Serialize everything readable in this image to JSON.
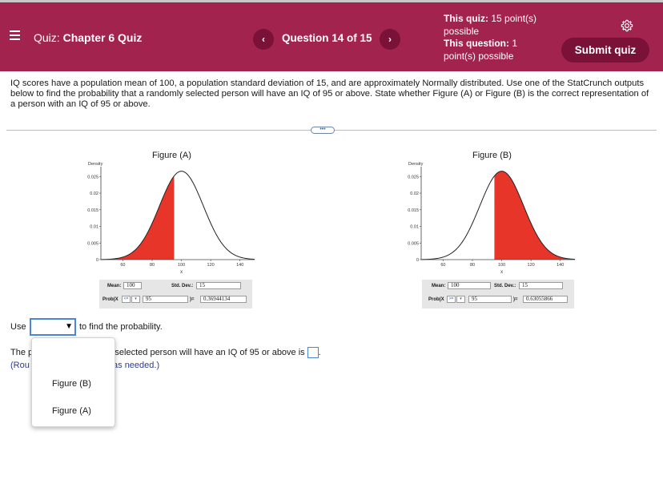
{
  "header": {
    "quiz_label": "Quiz:",
    "quiz_name": "Chapter 6 Quiz",
    "prev_symbol": "‹",
    "next_symbol": "›",
    "question_position": "Question 14 of 15",
    "this_quiz_label": "This quiz:",
    "this_quiz_points": "15 point(s)",
    "this_quiz_suffix": "possible",
    "this_question_label": "This question:",
    "this_question_points": "1",
    "this_question_suffix": "point(s) possible",
    "submit_label": "Submit quiz"
  },
  "question": {
    "text": "IQ scores have a population mean of 100, a population standard deviation of 15, and are approximately Normally distributed. Use one of the StatCrunch outputs below to find the probability that a randomly selected person will have an IQ of 95 or above. State whether Figure (A) or Figure (B) is the correct representation of a person with an IQ of 95 or above."
  },
  "divider_handle": "•••",
  "figures": [
    {
      "title": "Figure (A)",
      "density_label": "Density",
      "ytick_labels": [
        "0.025",
        "0.02",
        "0.015",
        "0.01",
        "0.005",
        "0"
      ],
      "xtick_labels": [
        "60",
        "80",
        "100",
        "120",
        "140"
      ],
      "x_axis_label": "x",
      "mean_label": "Mean:",
      "mean_value": "100",
      "sd_label": "Std. Dev.:",
      "sd_value": "15",
      "prob_label": "Prob(X",
      "direction": "<=",
      "cut_value": "95",
      "result_label": ")=",
      "result_value": "0.36944134"
    },
    {
      "title": "Figure (B)",
      "density_label": "Density",
      "ytick_labels": [
        "0.025",
        "0.02",
        "0.015",
        "0.01",
        "0.005",
        "0"
      ],
      "xtick_labels": [
        "60",
        "80",
        "100",
        "120",
        "140"
      ],
      "x_axis_label": "x",
      "mean_label": "Mean:",
      "mean_value": "100",
      "sd_label": "Std. Dev.:",
      "sd_value": "15",
      "prob_label": "Prob(X",
      "direction": ">=",
      "cut_value": "95",
      "result_label": ")=",
      "result_value": "0.63055866"
    }
  ],
  "chart_data": [
    {
      "type": "area",
      "title": "Figure (A)",
      "ylabel": "Density",
      "xlabel": "x",
      "distribution": "normal",
      "mean": 100,
      "sd": 15,
      "shaded_region": "x <= 95",
      "xlim": [
        45,
        150
      ],
      "ylim": [
        0,
        0.027
      ],
      "xticks": [
        60,
        80,
        100,
        120,
        140
      ],
      "yticks": [
        0,
        0.005,
        0.01,
        0.015,
        0.02,
        0.025
      ],
      "shade_color": "#e8352a"
    },
    {
      "type": "area",
      "title": "Figure (B)",
      "ylabel": "Density",
      "xlabel": "x",
      "distribution": "normal",
      "mean": 100,
      "sd": 15,
      "shaded_region": "x >= 95",
      "xlim": [
        45,
        150
      ],
      "ylim": [
        0,
        0.027
      ],
      "xticks": [
        60,
        80,
        100,
        120,
        140
      ],
      "yticks": [
        0,
        0.005,
        0.01,
        0.015,
        0.02,
        0.025
      ],
      "shade_color": "#e8352a"
    }
  ],
  "answer": {
    "use_label": "Use",
    "use_suffix": "to find the probability.",
    "prob_prefix": "The p",
    "prob_suffix": "omly selected person will have an IQ of 95 or above is",
    "round_prefix": "(Rou",
    "round_suffix": "ces as needed.)",
    "dropdown_options": [
      "Figure (B)",
      "Figure (A)"
    ]
  },
  "colors": {
    "header_bg": "#a3234f",
    "button_bg": "#7a1136",
    "shade": "#e8352a",
    "focus_blue": "#4a86d8"
  }
}
